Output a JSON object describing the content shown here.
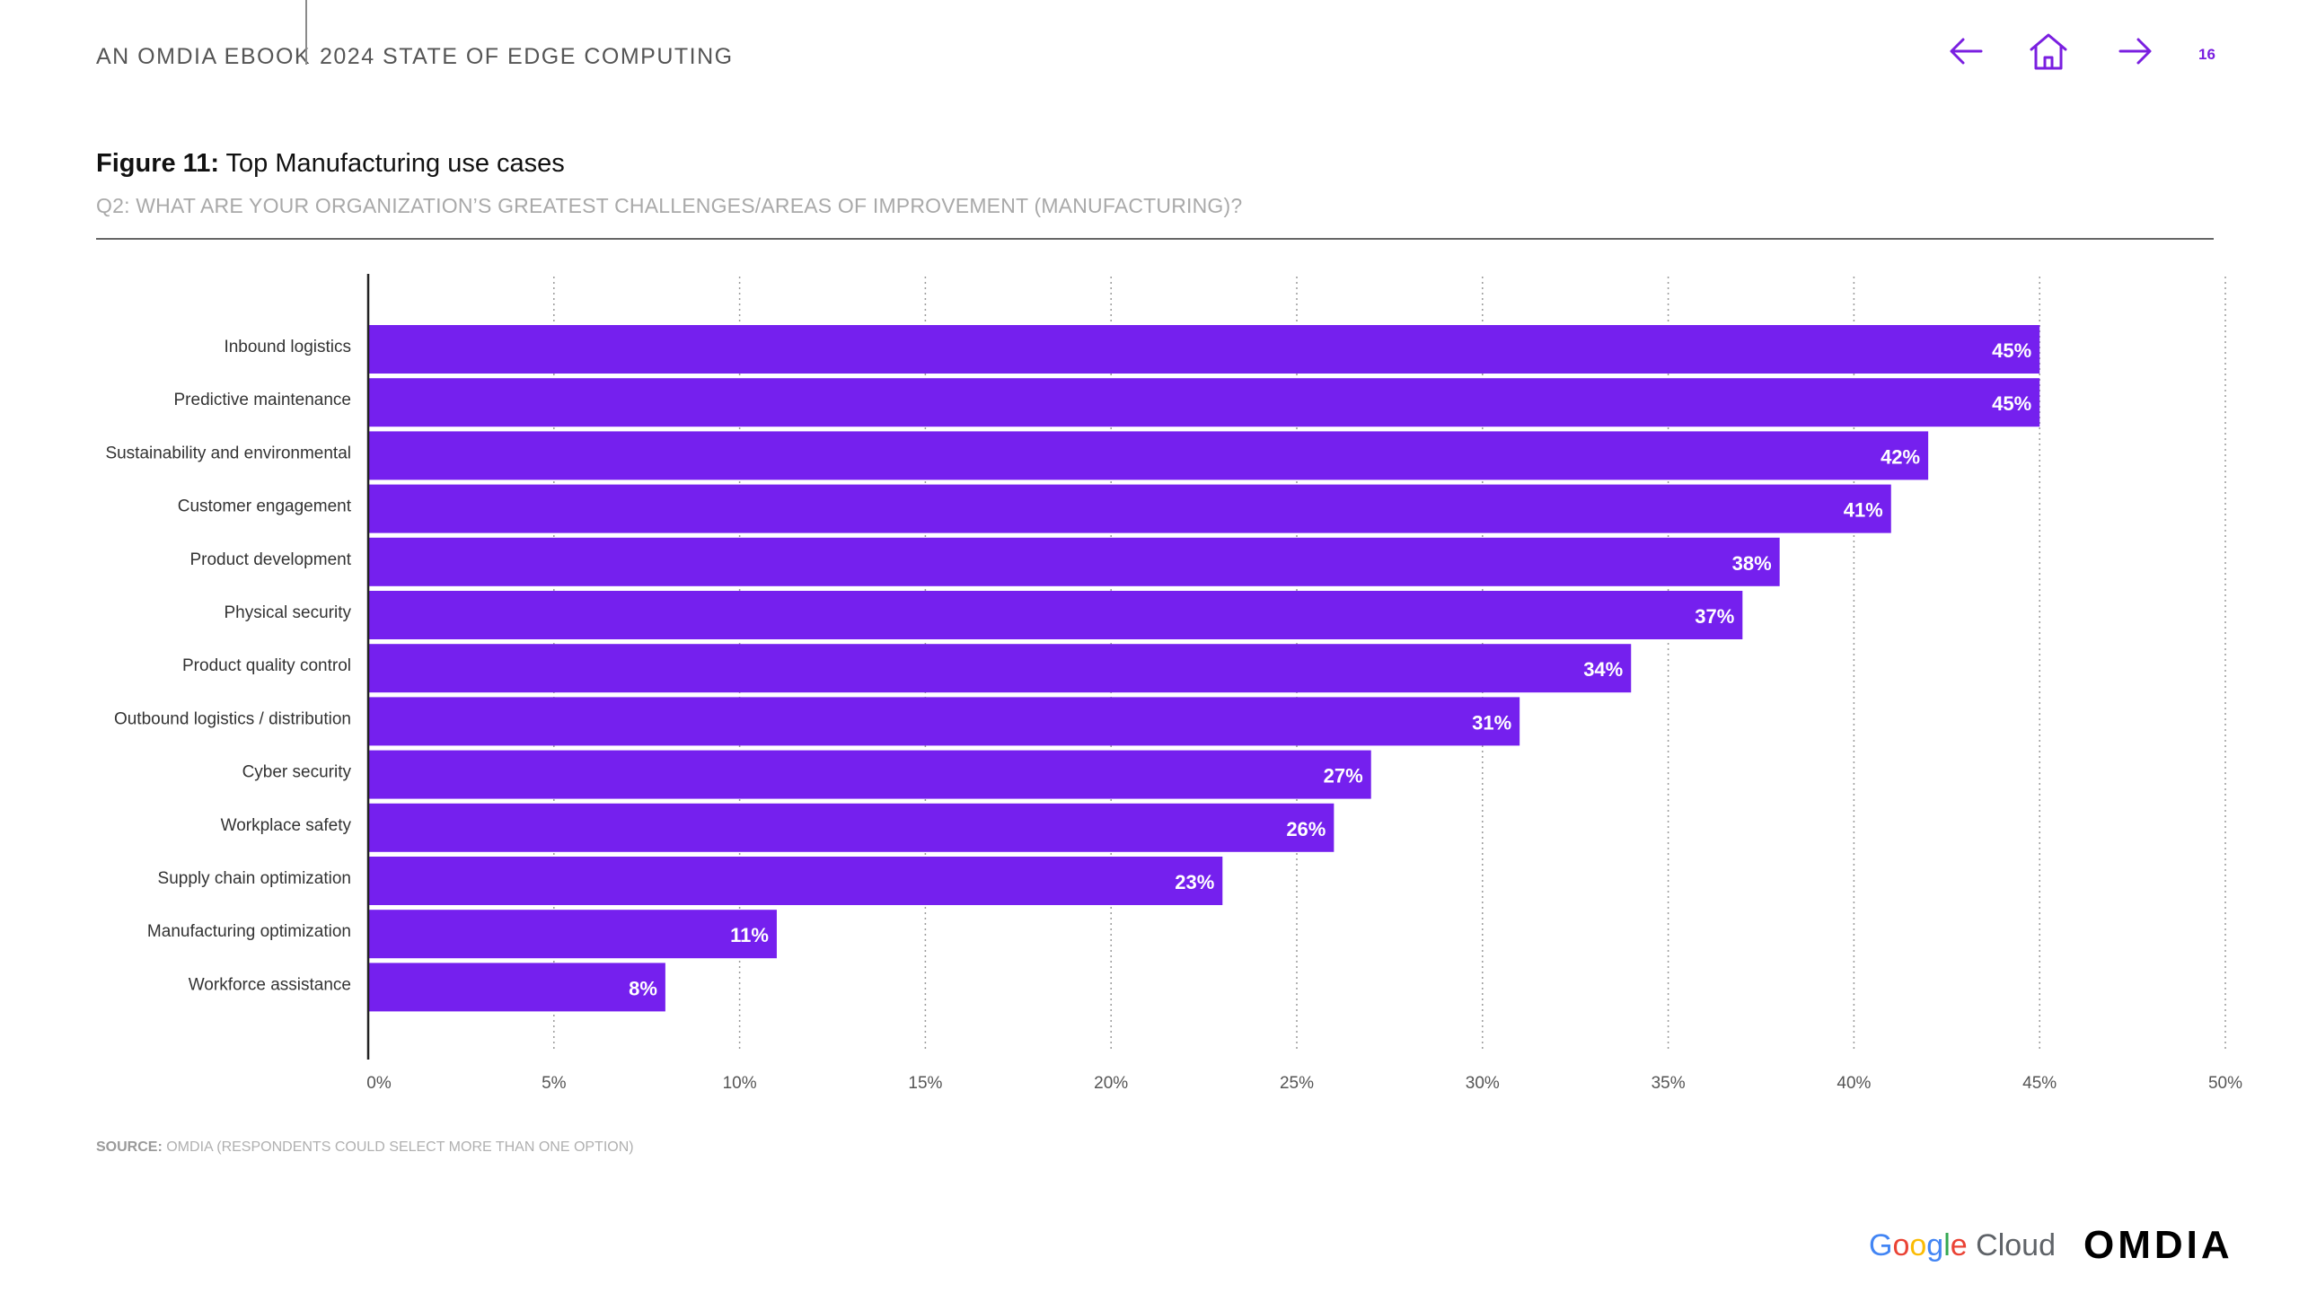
{
  "header": {
    "brand_left": "AN OMDIA EBOOK",
    "brand_right": "2024 STATE OF EDGE COMPUTING",
    "page_number": "16",
    "nav_icons": [
      "arrow-left-icon",
      "home-icon",
      "arrow-right-icon"
    ],
    "accent_color": "#7a1fe0"
  },
  "figure": {
    "title_prefix": "Figure 11:",
    "title": "Top Manufacturing use cases",
    "subtitle": "Q2: WHAT ARE YOUR ORGANIZATION’S GREATEST CHALLENGES/AREAS OF IMPROVEMENT (MANUFACTURING)?"
  },
  "chart_data": {
    "type": "bar",
    "orientation": "horizontal",
    "categories": [
      "Inbound logistics",
      "Predictive maintenance",
      "Sustainability and environmental",
      "Customer engagement",
      "Product development",
      "Physical security",
      "Product quality control",
      "Outbound logistics / distribution",
      "Cyber security",
      "Workplace safety",
      "Supply chain optimization",
      "Manufacturing optimization",
      "Workforce assistance"
    ],
    "values": [
      45,
      45,
      42,
      41,
      38,
      37,
      34,
      31,
      27,
      26,
      23,
      11,
      8
    ],
    "value_labels": [
      "45%",
      "45%",
      "42%",
      "41%",
      "38%",
      "37%",
      "34%",
      "31%",
      "27%",
      "26%",
      "23%",
      "11%",
      "8%"
    ],
    "xlim": [
      0,
      50
    ],
    "x_ticks": [
      0,
      5,
      10,
      15,
      20,
      25,
      30,
      35,
      40,
      45,
      50
    ],
    "x_tick_labels": [
      "0%",
      "5%",
      "10%",
      "15%",
      "20%",
      "25%",
      "30%",
      "35%",
      "40%",
      "45%",
      "50%"
    ],
    "grid": "vertical dotted",
    "bar_color": "#7520ee"
  },
  "source": {
    "label": "SOURCE:",
    "text": "OMDIA (RESPONDENTS COULD SELECT MORE THAN ONE OPTION)"
  },
  "footer": {
    "logo_google": [
      "G",
      "o",
      "o",
      "g",
      "l",
      "e"
    ],
    "logo_cloud": "Cloud",
    "logo_omdia": "OMDIA"
  }
}
